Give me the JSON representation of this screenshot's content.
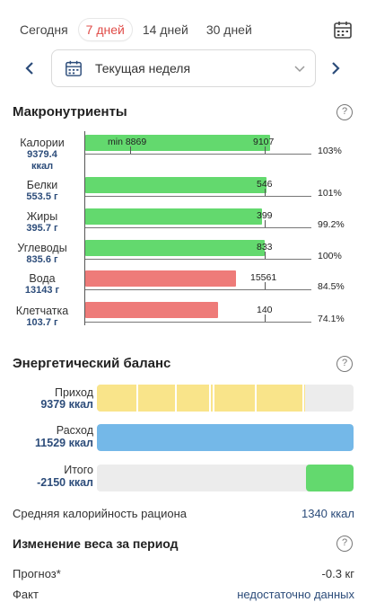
{
  "tabs": [
    "Сегодня",
    "7 дней",
    "14 дней",
    "30 дней"
  ],
  "active_tab_index": 1,
  "period": {
    "label": "Текущая неделя"
  },
  "macros": {
    "title": "Макронутриенты",
    "min_label": "min 8869",
    "rows": [
      {
        "name": "Калории",
        "value": "9379.4",
        "unit": "ккал",
        "norm": "9107",
        "percent": "103%",
        "fraction": 1.03,
        "status": "ok"
      },
      {
        "name": "Белки",
        "value": "553.5 г",
        "norm": "546",
        "percent": "101%",
        "fraction": 1.01,
        "status": "ok"
      },
      {
        "name": "Жиры",
        "value": "395.7 г",
        "norm": "399",
        "percent": "99.2%",
        "fraction": 0.992,
        "status": "ok"
      },
      {
        "name": "Углеводы",
        "value": "835.6 г",
        "norm": "833",
        "percent": "100%",
        "fraction": 1.0,
        "status": "ok"
      },
      {
        "name": "Вода",
        "value": "13143 г",
        "norm": "15561",
        "percent": "84.5%",
        "fraction": 0.845,
        "status": "low"
      },
      {
        "name": "Клетчатка",
        "value": "103.7 г",
        "norm": "140",
        "percent": "74.1%",
        "fraction": 0.741,
        "status": "low"
      }
    ]
  },
  "energy": {
    "title": "Энергетический баланс",
    "rows": [
      {
        "name": "Приход",
        "value": "9379 ккал"
      },
      {
        "name": "Расход",
        "value": "11529 ккал"
      },
      {
        "name": "Итого",
        "value": "-2150 ккал"
      }
    ],
    "intake_fraction": 0.813,
    "expense_fraction": 1.0,
    "total_fraction": 0.186
  },
  "avg": {
    "label": "Средняя калорийность рациона",
    "value": "1340 ккал"
  },
  "weight": {
    "title": "Изменение веса за период",
    "forecast_label": "Прогноз*",
    "forecast_value": "-0.3 кг",
    "fact_label": "Факт",
    "fact_value": "недостаточно данных"
  },
  "colors": {
    "accent": "#e04c48",
    "green": "#63d96e",
    "red": "#ee7b79",
    "yellow": "#f9e48a",
    "blue": "#74b8e8",
    "value_text": "#2c4c7a"
  }
}
